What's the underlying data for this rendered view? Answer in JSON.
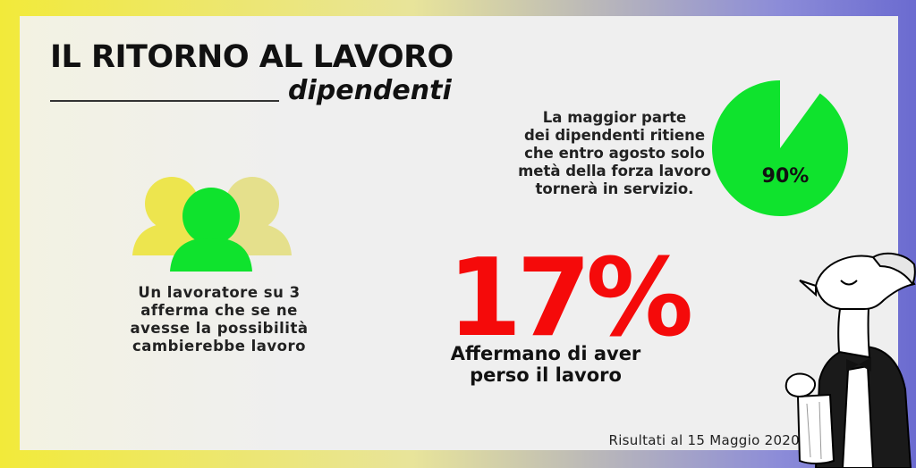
{
  "title": "IL RITORNO AL LAVORO",
  "subtitle": "dipendenti",
  "pie_stat": {
    "label": "90%",
    "value_percent": 90,
    "text_lines": [
      "La maggior parte",
      "dei dipendenti ritiene",
      "che entro agosto solo",
      "metà della forza lavoro",
      "tornerà in servizio."
    ]
  },
  "users_stat": {
    "text_lines": [
      "Un lavoratore su 3",
      "afferma che se ne",
      "avesse la possibilità",
      "cambierebbe lavoro"
    ]
  },
  "lost_stat": {
    "value": "17%",
    "text_lines": [
      "Affermano di aver",
      "perso il lavoro"
    ]
  },
  "footer": "Risultati al 15 Maggio 2020",
  "colors": {
    "accent_green": "#0fe32d",
    "accent_red": "#f50a0a",
    "border_yellow": "#f2ea3a",
    "border_blue": "#6b6bd0",
    "ghost_yellow": "#ede54e"
  },
  "icons": [
    "users-group-icon",
    "pie-chart-icon",
    "waiter-mascot-illustration"
  ]
}
